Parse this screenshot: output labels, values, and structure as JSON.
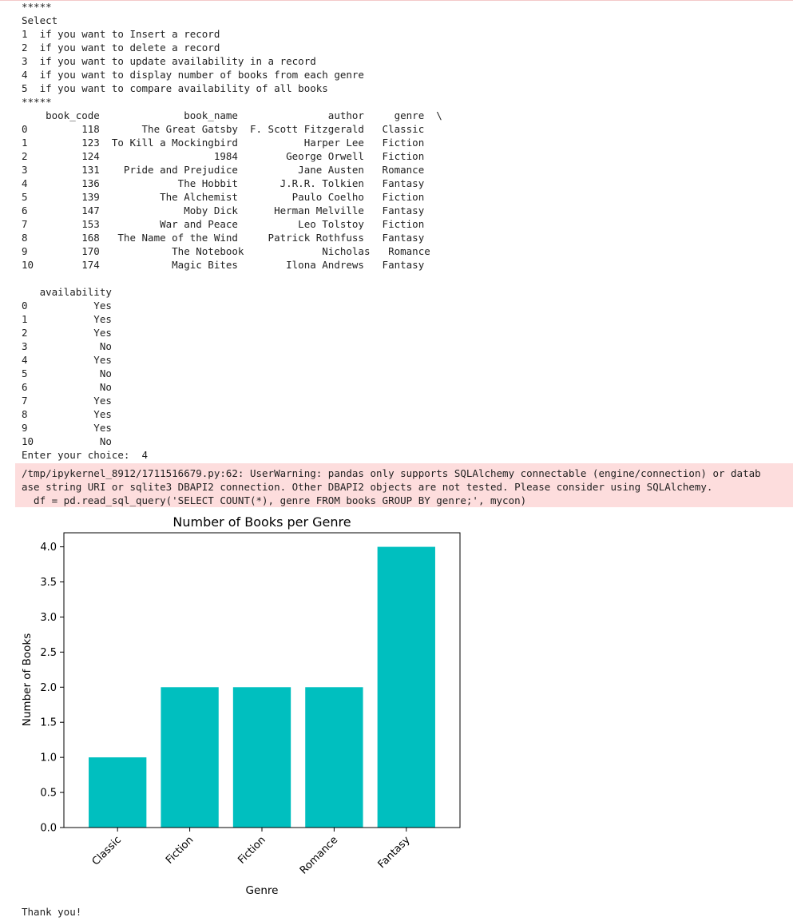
{
  "menu": {
    "separator_top": "*****",
    "select_label": "Select",
    "options": [
      "1  if you want to Insert a record",
      "2  if you want to delete a record",
      "3  if you want to update availability in a record",
      "4  if you want to display number of books from each genre",
      "5  if you want to compare availability of all books"
    ],
    "separator_bottom": "*****"
  },
  "table": {
    "header_line": "    book_code              book_name               author     genre  \\",
    "rows": [
      "0         118       The Great Gatsby  F. Scott Fitzgerald   Classic",
      "1         123  To Kill a Mockingbird           Harper Lee   Fiction",
      "2         124                   1984        George Orwell   Fiction",
      "3         131    Pride and Prejudice          Jane Austen   Romance",
      "4         136             The Hobbit       J.R.R. Tolkien   Fantasy",
      "5         139          The Alchemist         Paulo Coelho   Fiction",
      "6         147              Moby Dick      Herman Melville   Fantasy",
      "7         153          War and Peace          Leo Tolstoy   Fiction",
      "8         168   The Name of the Wind     Patrick Rothfuss   Fantasy",
      "9         170            The Notebook             Nicholas   Romance",
      "10        174            Magic Bites        Ilona Andrews   Fantasy"
    ],
    "availability_header": "   availability",
    "availability_rows": [
      "0           Yes",
      "1           Yes",
      "2           Yes",
      "3            No",
      "4           Yes",
      "5            No",
      "6            No",
      "7           Yes",
      "8           Yes",
      "9           Yes",
      "10           No"
    ]
  },
  "prompt": {
    "label": "Enter your choice:  ",
    "value": "4"
  },
  "warning": {
    "lines": [
      "/tmp/ipykernel_8912/1711516679.py:62: UserWarning: pandas only supports SQLAlchemy connectable (engine/connection) or datab",
      "ase string URI or sqlite3 DBAPI2 connection. Other DBAPI2 objects are not tested. Please consider using SQLAlchemy.",
      "  df = pd.read_sql_query('SELECT COUNT(*), genre FROM books GROUP BY genre;', mycon)"
    ]
  },
  "chart_data": {
    "type": "bar",
    "title": "Number of Books per Genre",
    "xlabel": "Genre",
    "ylabel": "Number of Books",
    "categories": [
      "Classic",
      "Fiction",
      "Fiction",
      "Romance",
      "Fantasy"
    ],
    "values": [
      1,
      2,
      2,
      2,
      4
    ],
    "ylim": [
      0,
      4.2
    ],
    "yticks": [
      "0.0",
      "0.5",
      "1.0",
      "1.5",
      "2.0",
      "2.5",
      "3.0",
      "3.5",
      "4.0"
    ],
    "bar_color": "#00bfbf",
    "grid": false
  },
  "footer": {
    "thanks": "Thank you!"
  }
}
